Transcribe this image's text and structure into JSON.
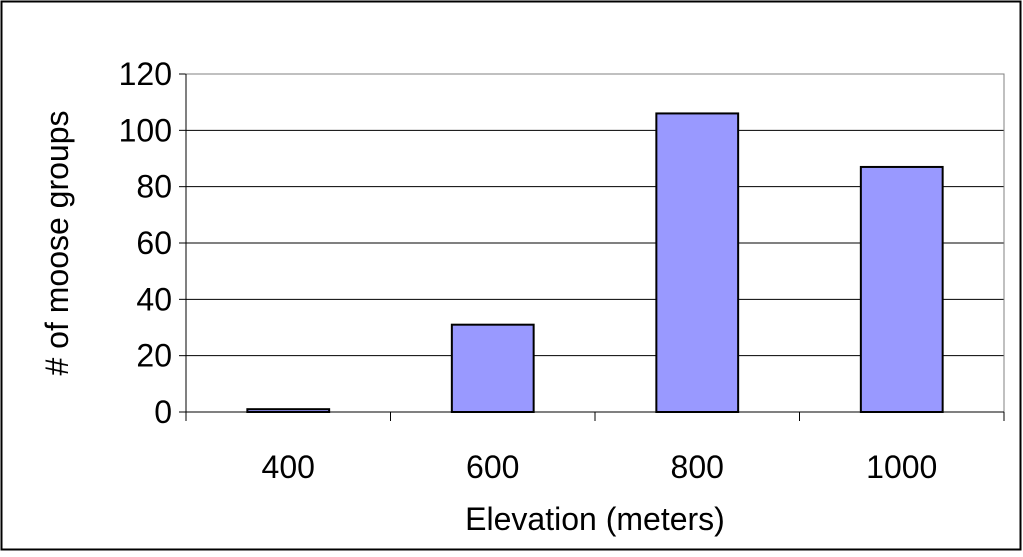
{
  "chart_data": {
    "type": "bar",
    "categories": [
      "400",
      "600",
      "800",
      "1000"
    ],
    "values": [
      1,
      31,
      106,
      87
    ],
    "xlabel": "Elevation (meters)",
    "ylabel": "# of moose groups",
    "ylim": [
      0,
      120
    ],
    "yticks": [
      "0",
      "20",
      "40",
      "60",
      "80",
      "100",
      "120"
    ],
    "grid": true,
    "legend": "none",
    "colors": {
      "bar_fill": "#9999ff",
      "bar_stroke": "#000000",
      "gridline": "#000000",
      "plot_background": "#ffffff",
      "frame": "#000000"
    }
  }
}
